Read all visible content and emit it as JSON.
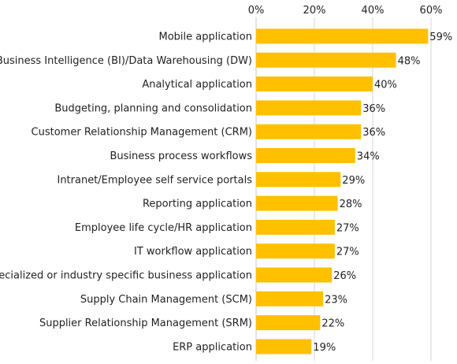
{
  "chart_data": {
    "type": "bar",
    "orientation": "horizontal",
    "title": "",
    "xlabel": "",
    "ylabel": "",
    "xlim": [
      0,
      60
    ],
    "x_ticks": [
      0,
      20,
      40,
      60
    ],
    "x_tick_labels": [
      "0%",
      "20%",
      "40%",
      "60%"
    ],
    "tick_position": "top",
    "grid": true,
    "bar_color": "#FFC000",
    "categories": [
      "Mobile application",
      "Business Intelligence (BI)/Data Warehousing (DW)",
      "Analytical application",
      "Budgeting, planning and consolidation",
      "Customer Relationship Management (CRM)",
      "Business process workflows",
      "Intranet/Employee self service portals",
      "Reporting application",
      "Employee life cycle/HR application",
      "IT workflow application",
      "Specialized or industry specific business application",
      "Supply Chain Management (SCM)",
      "Supplier Relationship Management (SRM)",
      "ERP application"
    ],
    "values": [
      59,
      48,
      40,
      36,
      36,
      34,
      29,
      28,
      27,
      27,
      26,
      23,
      22,
      19
    ],
    "value_labels": [
      "59%",
      "48%",
      "40%",
      "36%",
      "36%",
      "34%",
      "29%",
      "28%",
      "27%",
      "27%",
      "26%",
      "23%",
      "22%",
      "19%"
    ]
  }
}
